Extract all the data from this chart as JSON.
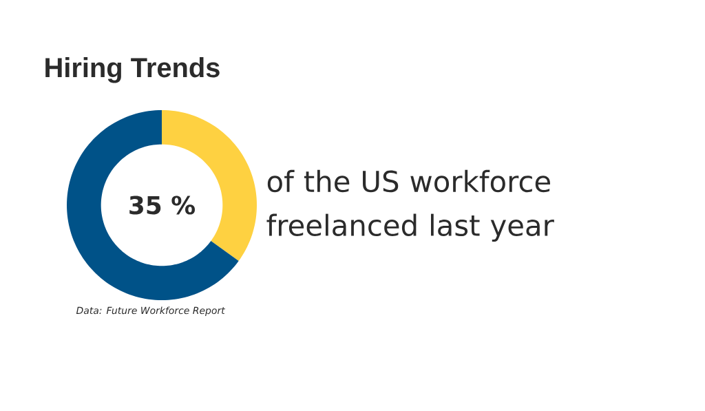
{
  "chart_data": {
    "type": "donut",
    "title": "Hiring Trends",
    "categories": [
      null,
      null
    ],
    "values": [
      35,
      65
    ],
    "colors": [
      "#fed141",
      "#005288"
    ],
    "annotations": [
      "35 %",
      "of the US workforce freelanced last year",
      "Data: Future Workforce Report"
    ]
  }
}
